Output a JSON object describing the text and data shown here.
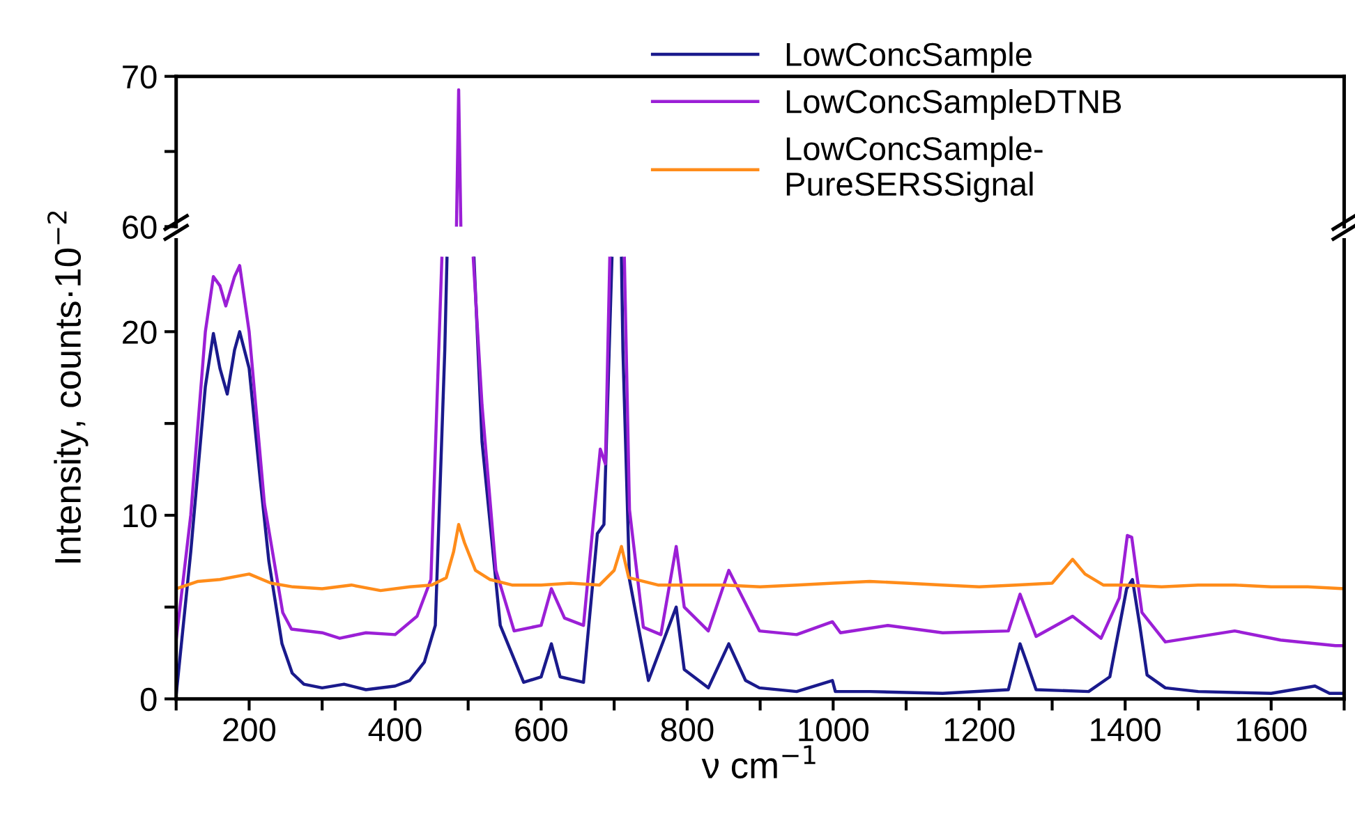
{
  "chart_data": [
    {
      "type": "line",
      "ylim": [
        60,
        70
      ],
      "yticks": [
        60,
        {
          "value": 65,
          "label": null
        },
        70
      ],
      "xlim": [
        100,
        1700
      ],
      "tick_labels": "y",
      "grid": false,
      "legend": false,
      "series": [
        {
          "color": "#9b1fd6",
          "x": [
            484,
            487,
            490
          ],
          "values": [
            60,
            69.1,
            60
          ]
        }
      ]
    },
    {
      "type": "line",
      "xlabel": "ν cm$^{−1}$",
      "ylabel": "Intensity, counts·10$^{−2}$",
      "xlim": [
        100,
        1700
      ],
      "ylim": [
        0,
        25
      ],
      "xticks": [
        {
          "value": 100,
          "label": null
        },
        200,
        {
          "value": 300,
          "label": null
        },
        400,
        {
          "value": 500,
          "label": null
        },
        600,
        {
          "value": 700,
          "label": null
        },
        800,
        {
          "value": 900,
          "label": null
        },
        1000,
        {
          "value": 1100,
          "label": null
        },
        1200,
        {
          "value": 1300,
          "label": null
        },
        1400,
        {
          "value": 1500,
          "label": null
        },
        1600,
        {
          "value": 1700,
          "label": null
        }
      ],
      "yticks": [
        0,
        {
          "value": 5,
          "label": null
        },
        10,
        {
          "value": 15,
          "label": null
        },
        20
      ],
      "grid": false,
      "legend": "top",
      "series": [
        {
          "name": "LowConcSample",
          "color": "#1a1a8c",
          "x": [
            100,
            120,
            140,
            151,
            160,
            170,
            180,
            187,
            200,
            215,
            227,
            245,
            259,
            275,
            300,
            330,
            360,
            400,
            420,
            440,
            455,
            468,
            471,
            474,
            487,
            504,
            508,
            519,
            544,
            576,
            600,
            614,
            626,
            658,
            677,
            686,
            697,
            700,
            705,
            710,
            712,
            721,
            747,
            785,
            796,
            829,
            857,
            880,
            899,
            950,
            999,
            1003,
            1050,
            1150,
            1240,
            1256,
            1265,
            1278,
            1350,
            1379,
            1402,
            1410,
            1420,
            1430,
            1455,
            1500,
            1600,
            1660,
            1680,
            1700
          ],
          "values": [
            0.2,
            8,
            17,
            19.9,
            18,
            16.6,
            19,
            20,
            18,
            12,
            7.5,
            3,
            1.4,
            0.8,
            0.6,
            0.8,
            0.5,
            0.7,
            1.0,
            2,
            4.0,
            19,
            24,
            null,
            null,
            null,
            24,
            14,
            4,
            0.9,
            1.2,
            3.0,
            1.2,
            0.9,
            9.0,
            9.5,
            24,
            null,
            null,
            24,
            19,
            6.5,
            1.0,
            5.0,
            1.6,
            0.6,
            3.0,
            1.0,
            0.6,
            0.4,
            1.0,
            0.4,
            0.4,
            0.3,
            0.5,
            3.0,
            2.0,
            0.5,
            0.4,
            1.2,
            6.0,
            6.5,
            4.0,
            1.3,
            0.6,
            0.4,
            0.3,
            0.7,
            0.3,
            0.3
          ]
        },
        {
          "name": "LowConcSampleDTNB",
          "color": "#9b1fd6",
          "x": [
            100,
            120,
            140,
            151,
            160,
            168,
            180,
            187,
            200,
            221,
            246,
            258,
            300,
            324,
            360,
            400,
            430,
            449,
            464,
            468,
            487,
            503,
            507,
            519,
            538,
            563,
            600,
            614,
            632,
            658,
            681,
            688,
            694,
            697,
            705,
            712,
            714,
            721,
            740,
            764,
            785,
            796,
            829,
            857,
            899,
            950,
            999,
            1010,
            1075,
            1150,
            1240,
            1256,
            1278,
            1328,
            1367,
            1392,
            1403,
            1409,
            1423,
            1455,
            1550,
            1613,
            1688,
            1700
          ],
          "values": [
            3.2,
            10,
            20,
            23,
            22.5,
            21.4,
            23,
            23.6,
            20,
            10.6,
            4.7,
            3.8,
            3.6,
            3.3,
            3.6,
            3.5,
            4.5,
            6.5,
            24,
            null,
            null,
            null,
            24,
            16,
            7.0,
            3.7,
            4.0,
            6.0,
            4.4,
            4.0,
            13.6,
            12.8,
            24,
            null,
            null,
            null,
            24,
            10.3,
            3.9,
            3.5,
            8.3,
            5.0,
            3.7,
            7.0,
            3.7,
            3.5,
            4.2,
            3.6,
            4.0,
            3.6,
            3.7,
            5.7,
            3.4,
            4.5,
            3.3,
            5.5,
            8.9,
            8.8,
            4.7,
            3.1,
            3.7,
            3.2,
            2.9,
            2.9
          ]
        },
        {
          "name": "LowConcSample-\nPureSERSSignal",
          "color": "#ff8c1a",
          "x": [
            100,
            130,
            160,
            200,
            230,
            260,
            300,
            340,
            380,
            420,
            450,
            470,
            480,
            487,
            495,
            510,
            530,
            560,
            600,
            640,
            680,
            700,
            710,
            720,
            760,
            800,
            850,
            900,
            950,
            1000,
            1050,
            1100,
            1150,
            1200,
            1250,
            1300,
            1328,
            1345,
            1370,
            1400,
            1450,
            1500,
            1550,
            1600,
            1650,
            1700
          ],
          "values": [
            6.0,
            6.4,
            6.5,
            6.8,
            6.3,
            6.1,
            6.0,
            6.2,
            5.9,
            6.1,
            6.2,
            6.6,
            8.0,
            9.5,
            8.5,
            7.0,
            6.5,
            6.2,
            6.2,
            6.3,
            6.2,
            7.0,
            8.3,
            6.6,
            6.2,
            6.2,
            6.2,
            6.1,
            6.2,
            6.3,
            6.4,
            6.3,
            6.2,
            6.1,
            6.2,
            6.3,
            7.6,
            6.8,
            6.2,
            6.2,
            6.1,
            6.2,
            6.2,
            6.1,
            6.1,
            6.0
          ]
        }
      ]
    }
  ]
}
